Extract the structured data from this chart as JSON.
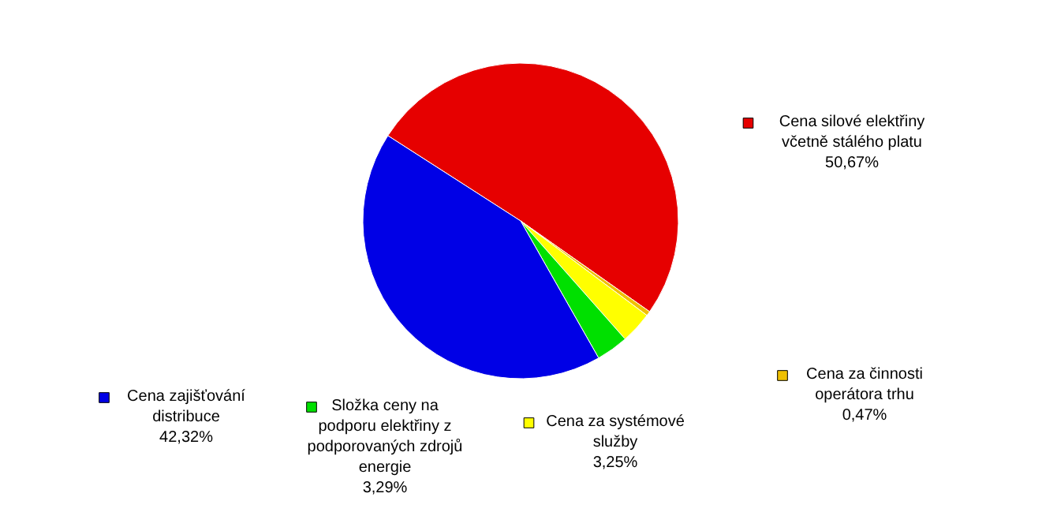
{
  "chart_data": {
    "type": "pie",
    "categories": [
      "Cena silové elektřiny včetně stálého platu",
      "Cena za činnosti operátora trhu",
      "Cena za systémové služby",
      "Složka ceny na podporu elektřiny z podporovaných zdrojů energie",
      "Cena zajišťování distribuce"
    ],
    "values": [
      50.67,
      0.47,
      3.25,
      3.29,
      42.32
    ],
    "value_labels": [
      "50,67%",
      "0,47%",
      "3,25%",
      "3,29%",
      "42,32%"
    ],
    "colors": [
      "#e60000",
      "#f0c000",
      "#ffff00",
      "#00e000",
      "#0000e6"
    ],
    "legend": "bottom"
  }
}
